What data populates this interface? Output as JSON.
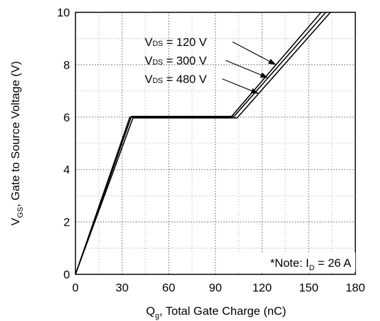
{
  "chart_data": {
    "type": "line",
    "xlabel": {
      "main": "Q",
      "sub": "g",
      "rest": ", Total Gate Charge (nC)"
    },
    "ylabel": {
      "main": "V",
      "sub": "GS",
      "rest": ", Gate to Source Voltage (V)"
    },
    "xlim": [
      0,
      180
    ],
    "ylim": [
      0,
      10
    ],
    "xticks": [
      0,
      30,
      60,
      90,
      120,
      150,
      180
    ],
    "yticks": [
      0,
      2,
      4,
      6,
      8,
      10
    ],
    "grid": "dotted",
    "series": [
      {
        "name": "VDS = 120 V",
        "x": [
          0,
          35,
          100,
          158
        ],
        "y": [
          0,
          6.0,
          6.0,
          10
        ]
      },
      {
        "name": "VDS = 300 V",
        "x": [
          0,
          36,
          102,
          161
        ],
        "y": [
          0,
          6.03,
          6.03,
          10
        ]
      },
      {
        "name": "VDS = 480 V",
        "x": [
          0,
          37,
          104,
          164
        ],
        "y": [
          0,
          5.97,
          5.97,
          10
        ]
      }
    ],
    "annotations": [
      {
        "label_main": "V",
        "label_sub": "DS",
        "label_rest": " = 120 V",
        "series": 0
      },
      {
        "label_main": "V",
        "label_sub": "DS",
        "label_rest": " = 300 V",
        "series": 1
      },
      {
        "label_main": "V",
        "label_sub": "DS",
        "label_rest": " = 480 V",
        "series": 2
      }
    ],
    "note": {
      "prefix": "*Note: I",
      "sub": "D",
      "rest": " = 26 A"
    }
  }
}
